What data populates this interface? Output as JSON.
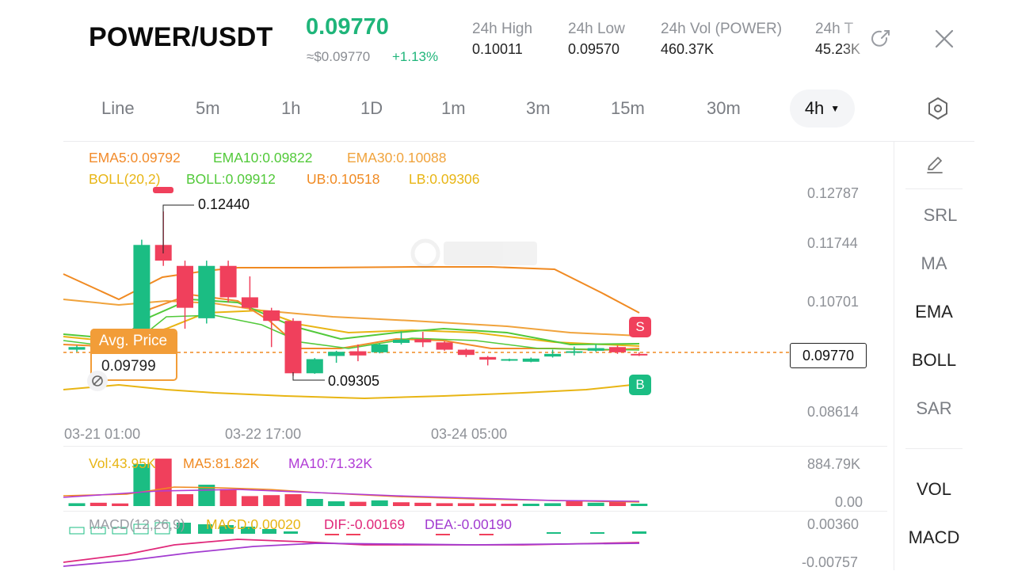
{
  "header": {
    "pair": "POWER/USDT",
    "last_price": "0.09770",
    "usd_price": "≈$0.09770",
    "change": "+1.13%",
    "stats": [
      {
        "label": "24h  High",
        "value": "0.10011"
      },
      {
        "label": "24h  Low",
        "value": "0.09570"
      },
      {
        "label": "24h  Vol (POWER)",
        "value": "460.37K"
      },
      {
        "label": "24h  T",
        "value": "45.23K"
      }
    ]
  },
  "timeframes": [
    "Line",
    "5m",
    "1h",
    "1D",
    "1m",
    "3m",
    "15m",
    "30m"
  ],
  "active_timeframe": "4h",
  "indicators": {
    "ema": [
      {
        "text": "EMA5:0.09792",
        "color": "#f28b2b"
      },
      {
        "text": "EMA10:0.09822",
        "color": "#52c93a"
      },
      {
        "text": "EMA30:0.10088",
        "color": "#f0a33c"
      }
    ],
    "boll": [
      {
        "text": "BOLL(20,2)",
        "color": "#e8b514"
      },
      {
        "text": "BOLL:0.09912",
        "color": "#52c93a"
      },
      {
        "text": "UB:0.10518",
        "color": "#f08a22"
      },
      {
        "text": "LB:0.09306",
        "color": "#e8b514"
      }
    ],
    "vol": [
      {
        "text": "Vol:43.95K",
        "color": "#e8b514"
      },
      {
        "text": "MA5:81.82K",
        "color": "#f08a22"
      },
      {
        "text": "MA10:71.32K",
        "color": "#b13cd6"
      }
    ],
    "macd": [
      {
        "text": "MACD(12,26,9)",
        "color": "#9a9da3"
      },
      {
        "text": "MACD:0.00020",
        "color": "#e8b514"
      },
      {
        "text": "DIF:-0.00169",
        "color": "#e0287a"
      },
      {
        "text": "DEA:-0.00190",
        "color": "#a23bd0"
      }
    ]
  },
  "price_axis": [
    "0.12787",
    "0.11744",
    "0.10701",
    "0.08614"
  ],
  "vol_axis": [
    "884.79K",
    "0.00"
  ],
  "macd_axis": [
    "0.00360",
    "-0.00757"
  ],
  "time_axis": [
    "03-21 01:00",
    "03-22 17:00",
    "03-24 05:00"
  ],
  "annotations": {
    "high": "0.12440",
    "low": "0.09305",
    "avg_price_label": "Avg. Price",
    "avg_price_value": "0.09799",
    "current_price": "0.09770",
    "sell_marker": "S",
    "buy_marker": "B"
  },
  "side_menu": [
    "SRL",
    "MA",
    "EMA",
    "BOLL",
    "SAR",
    "VOL",
    "MACD"
  ],
  "colors": {
    "up": "#1bbd83",
    "down": "#f0405c",
    "accent": "#1fb57a",
    "avg": "#f29d38"
  },
  "chart_data": {
    "type": "candlestick",
    "candles": [
      {
        "o": 0.098,
        "c": 0.0985,
        "h": 0.0988,
        "l": 0.0976
      },
      {
        "o": 0.0985,
        "c": 0.0988,
        "h": 0.099,
        "l": 0.0983
      },
      {
        "o": 0.0984,
        "c": 0.0987,
        "h": 0.0989,
        "l": 0.0982
      },
      {
        "o": 0.1,
        "c": 0.118,
        "h": 0.119,
        "l": 0.0995
      },
      {
        "o": 0.118,
        "c": 0.115,
        "h": 0.1244,
        "l": 0.114
      },
      {
        "o": 0.114,
        "c": 0.106,
        "h": 0.115,
        "l": 0.102
      },
      {
        "o": 0.104,
        "c": 0.114,
        "h": 0.115,
        "l": 0.103
      },
      {
        "o": 0.114,
        "c": 0.108,
        "h": 0.115,
        "l": 0.107
      },
      {
        "o": 0.108,
        "c": 0.106,
        "h": 0.112,
        "l": 0.1055
      },
      {
        "o": 0.1055,
        "c": 0.1035,
        "h": 0.106,
        "l": 0.0985
      },
      {
        "o": 0.1035,
        "c": 0.0935,
        "h": 0.104,
        "l": 0.093
      },
      {
        "o": 0.0935,
        "c": 0.0962,
        "h": 0.0964,
        "l": 0.0934
      },
      {
        "o": 0.0968,
        "c": 0.0976,
        "h": 0.0978,
        "l": 0.0955
      },
      {
        "o": 0.0977,
        "c": 0.0969,
        "h": 0.099,
        "l": 0.0958
      },
      {
        "o": 0.0975,
        "c": 0.099,
        "h": 0.0992,
        "l": 0.0973
      },
      {
        "o": 0.0993,
        "c": 0.0999,
        "h": 0.1015,
        "l": 0.099
      },
      {
        "o": 0.1,
        "c": 0.0994,
        "h": 0.1014,
        "l": 0.0985
      },
      {
        "o": 0.0994,
        "c": 0.098,
        "h": 0.0996,
        "l": 0.0978
      },
      {
        "o": 0.098,
        "c": 0.097,
        "h": 0.0982,
        "l": 0.0966
      },
      {
        "o": 0.0966,
        "c": 0.0961,
        "h": 0.0968,
        "l": 0.095
      },
      {
        "o": 0.0961,
        "c": 0.0962,
        "h": 0.0963,
        "l": 0.0958
      },
      {
        "o": 0.0957,
        "c": 0.0963,
        "h": 0.0965,
        "l": 0.0956
      },
      {
        "o": 0.0967,
        "c": 0.0972,
        "h": 0.098,
        "l": 0.0965
      },
      {
        "o": 0.0975,
        "c": 0.0977,
        "h": 0.0986,
        "l": 0.0969
      },
      {
        "o": 0.0978,
        "c": 0.0983,
        "h": 0.099,
        "l": 0.0976
      },
      {
        "o": 0.0985,
        "c": 0.0975,
        "h": 0.0988,
        "l": 0.0972
      },
      {
        "o": 0.0972,
        "c": 0.097,
        "h": 0.0975,
        "l": 0.0968
      }
    ],
    "volume": [
      {
        "v": 60,
        "up": true
      },
      {
        "v": 70,
        "up": false
      },
      {
        "v": 55,
        "up": false
      },
      {
        "v": 885,
        "up": true
      },
      {
        "v": 1100,
        "up": false
      },
      {
        "v": 250,
        "up": false
      },
      {
        "v": 450,
        "up": true
      },
      {
        "v": 360,
        "up": false
      },
      {
        "v": 210,
        "up": false
      },
      {
        "v": 230,
        "up": false
      },
      {
        "v": 250,
        "up": false
      },
      {
        "v": 150,
        "up": true
      },
      {
        "v": 100,
        "up": true
      },
      {
        "v": 90,
        "up": false
      },
      {
        "v": 120,
        "up": true
      },
      {
        "v": 80,
        "up": false
      },
      {
        "v": 70,
        "up": false
      },
      {
        "v": 60,
        "up": false
      },
      {
        "v": 60,
        "up": false
      },
      {
        "v": 55,
        "up": false
      },
      {
        "v": 50,
        "up": false
      },
      {
        "v": 45,
        "up": true
      },
      {
        "v": 60,
        "up": true
      },
      {
        "v": 100,
        "up": false
      },
      {
        "v": 70,
        "up": true
      },
      {
        "v": 90,
        "up": false
      },
      {
        "v": 44,
        "up": true
      }
    ]
  }
}
